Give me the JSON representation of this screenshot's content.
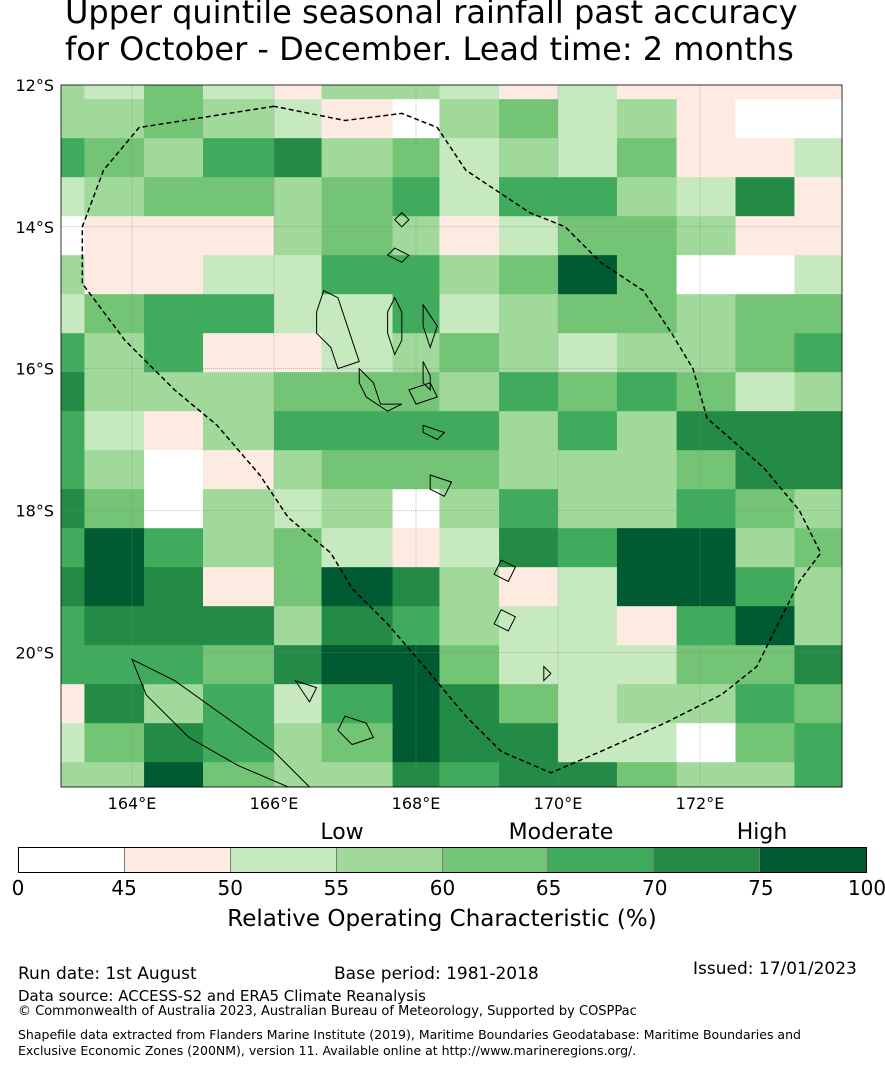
{
  "title": {
    "line1": "Upper quintile seasonal rainfall past accuracy",
    "line2": "for October - December. Lead time: 2 months"
  },
  "map": {
    "lon_range": [
      163.0,
      174.0
    ],
    "lat_range": [
      -21.9,
      -12.0
    ],
    "lon_ticks": [
      {
        "value": 164,
        "label": "164°E"
      },
      {
        "value": 166,
        "label": "166°E"
      },
      {
        "value": 168,
        "label": "168°E"
      },
      {
        "value": 170,
        "label": "170°E"
      },
      {
        "value": 172,
        "label": "172°E"
      }
    ],
    "lat_ticks": [
      {
        "value": -12,
        "label": "12°S"
      },
      {
        "value": -14,
        "label": "14°S"
      },
      {
        "value": -16,
        "label": "16°S"
      },
      {
        "value": -18,
        "label": "18°S"
      },
      {
        "value": -20,
        "label": "20°S"
      }
    ],
    "grid": true,
    "boundary": "dashed EEZ outline",
    "col_lons": [
      163.0,
      163.33,
      164.17,
      165.0,
      166.0,
      166.67,
      167.67,
      168.33,
      169.17,
      170.0,
      170.83,
      171.67,
      172.5,
      173.33,
      174.0
    ],
    "row_lats": [
      -12.0,
      -12.2,
      -12.75,
      -13.3,
      -13.85,
      -14.4,
      -14.95,
      -15.5,
      -16.05,
      -16.6,
      -17.15,
      -17.7,
      -18.25,
      -18.8,
      -19.35,
      -19.9,
      -20.45,
      -21.0,
      -21.55,
      -21.9
    ],
    "roc_values": [
      [
        57,
        52,
        62,
        52,
        47,
        57,
        57,
        52,
        47,
        52,
        47,
        47,
        47,
        47
      ],
      [
        57,
        57,
        62,
        57,
        52,
        47,
        42,
        57,
        62,
        52,
        57,
        47,
        42,
        42
      ],
      [
        67,
        62,
        57,
        67,
        72,
        57,
        62,
        52,
        57,
        52,
        62,
        47,
        47,
        52
      ],
      [
        52,
        57,
        62,
        62,
        57,
        62,
        67,
        52,
        67,
        67,
        57,
        52,
        72,
        47
      ],
      [
        42,
        47,
        47,
        47,
        57,
        62,
        57,
        47,
        52,
        62,
        62,
        57,
        47,
        47
      ],
      [
        57,
        47,
        47,
        52,
        52,
        67,
        67,
        57,
        62,
        77,
        62,
        42,
        42,
        52
      ],
      [
        52,
        62,
        67,
        67,
        52,
        52,
        67,
        52,
        57,
        62,
        62,
        57,
        62,
        62
      ],
      [
        67,
        57,
        67,
        47,
        47,
        52,
        57,
        62,
        57,
        52,
        57,
        57,
        62,
        67
      ],
      [
        72,
        57,
        57,
        57,
        62,
        62,
        62,
        57,
        67,
        62,
        67,
        62,
        52,
        57
      ],
      [
        67,
        52,
        47,
        57,
        67,
        67,
        67,
        67,
        57,
        67,
        57,
        72,
        72,
        72
      ],
      [
        67,
        57,
        42,
        47,
        57,
        62,
        62,
        62,
        57,
        57,
        57,
        62,
        72,
        72
      ],
      [
        72,
        62,
        42,
        57,
        52,
        57,
        42,
        57,
        67,
        57,
        57,
        67,
        62,
        57
      ],
      [
        67,
        77,
        67,
        57,
        62,
        52,
        47,
        52,
        72,
        67,
        77,
        77,
        57,
        62
      ],
      [
        72,
        77,
        72,
        47,
        62,
        77,
        72,
        57,
        47,
        52,
        77,
        77,
        67,
        57
      ],
      [
        67,
        72,
        72,
        72,
        57,
        72,
        67,
        57,
        52,
        52,
        47,
        67,
        77,
        57
      ],
      [
        67,
        67,
        67,
        62,
        72,
        77,
        77,
        62,
        52,
        52,
        52,
        62,
        62,
        72
      ],
      [
        47,
        72,
        57,
        67,
        52,
        67,
        77,
        72,
        62,
        52,
        57,
        57,
        67,
        62
      ],
      [
        52,
        62,
        72,
        67,
        57,
        62,
        77,
        72,
        72,
        52,
        52,
        42,
        62,
        67
      ],
      [
        57,
        57,
        77,
        62,
        57,
        57,
        72,
        67,
        72,
        72,
        62,
        57,
        57,
        67
      ]
    ]
  },
  "colorbar": {
    "bounds": [
      0,
      45,
      50,
      55,
      60,
      65,
      70,
      75,
      100
    ],
    "tick_labels": [
      "0",
      "45",
      "50",
      "55",
      "60",
      "65",
      "70",
      "75",
      "100"
    ],
    "colors": [
      "#ffffff",
      "#fdebe2",
      "#c7e9c0",
      "#a1d99b",
      "#74c476",
      "#41ab5d",
      "#238b45",
      "#005a32"
    ],
    "categories": {
      "low": "Low",
      "moderate": "Moderate",
      "high": "High"
    },
    "label": "Relative Operating Characteristic (%)"
  },
  "footer": {
    "run_date": "Run date: 1st August",
    "base_period": "Base period: 1981-2018",
    "issued": "Issued: 17/01/2023",
    "data_source": "Data source: ACCESS-S2 and ERA5 Climate Reanalysis",
    "copyright": "© Commonwealth of Australia 2023, Australian Bureau of Meteorology, Supported by COSPPac",
    "shapefile_credit": "Shapefile data extracted from Flanders Marine Institute (2019), Maritime Boundaries Geodatabase: Maritime Boundaries and Exclusive Economic Zones (200NM), version 11. Available online at http://www.marineregions.org/."
  }
}
